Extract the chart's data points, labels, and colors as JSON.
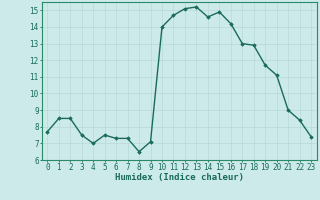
{
  "x": [
    0,
    1,
    2,
    3,
    4,
    5,
    6,
    7,
    8,
    9,
    10,
    11,
    12,
    13,
    14,
    15,
    16,
    17,
    18,
    19,
    20,
    21,
    22,
    23
  ],
  "y": [
    7.7,
    8.5,
    8.5,
    7.5,
    7.0,
    7.5,
    7.3,
    7.3,
    6.5,
    7.1,
    14.0,
    14.7,
    15.1,
    15.2,
    14.6,
    14.9,
    14.2,
    13.0,
    12.9,
    11.7,
    11.1,
    9.0,
    8.4,
    7.4
  ],
  "line_color": "#1a6b5a",
  "marker": "D",
  "marker_size": 1.8,
  "line_width": 1.0,
  "bg_color": "#cceaea",
  "grid_color": "#b8d8d8",
  "xlabel": "Humidex (Indice chaleur)",
  "ylim": [
    6,
    15.5
  ],
  "yticks": [
    6,
    7,
    8,
    9,
    10,
    11,
    12,
    13,
    14,
    15
  ],
  "xticks": [
    0,
    1,
    2,
    3,
    4,
    5,
    6,
    7,
    8,
    9,
    10,
    11,
    12,
    13,
    14,
    15,
    16,
    17,
    18,
    19,
    20,
    21,
    22,
    23
  ],
  "xlabel_fontsize": 6.5,
  "tick_fontsize": 5.5,
  "tick_color": "#1a6b5a",
  "label_color": "#1a6b5a",
  "spine_color": "#2a8a6a"
}
